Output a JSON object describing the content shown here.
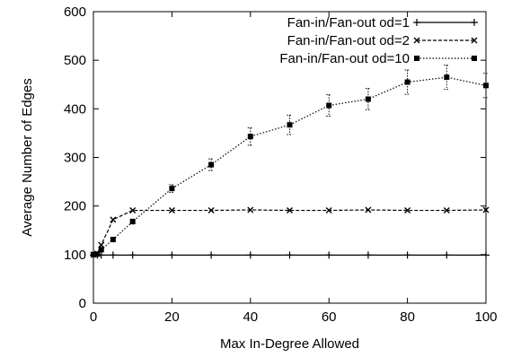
{
  "chart_data": {
    "type": "line",
    "title": "",
    "xlabel": "Max In-Degree Allowed",
    "ylabel": "Average Number of Edges",
    "xlim": [
      0,
      100
    ],
    "ylim": [
      0,
      600
    ],
    "xticks": [
      0,
      20,
      40,
      60,
      80,
      100
    ],
    "yticks": [
      0,
      100,
      200,
      300,
      400,
      500,
      600
    ],
    "legend_position": "top-right",
    "grid": false,
    "series": [
      {
        "name": "Fan-in/Fan-out od=1",
        "style": "solid",
        "marker": "plus",
        "x": [
          0,
          1,
          2,
          5,
          10,
          20,
          30,
          40,
          50,
          60,
          70,
          80,
          90,
          100
        ],
        "y": [
          99,
          99,
          99,
          99,
          99,
          99,
          99,
          99,
          99,
          99,
          99,
          99,
          99,
          99
        ],
        "err": [
          0,
          0,
          0,
          0,
          0,
          0,
          0,
          0,
          0,
          0,
          0,
          0,
          0,
          0
        ]
      },
      {
        "name": "Fan-in/Fan-out od=2",
        "style": "dashed",
        "marker": "cross",
        "x": [
          0,
          1,
          2,
          5,
          10,
          20,
          30,
          40,
          50,
          60,
          70,
          80,
          90,
          100
        ],
        "y": [
          100,
          102,
          120,
          172,
          191,
          191,
          191,
          192,
          191,
          191,
          192,
          191,
          191,
          192
        ],
        "err": [
          0,
          0,
          0,
          0,
          0,
          0,
          0,
          0,
          0,
          0,
          0,
          0,
          0,
          0
        ]
      },
      {
        "name": "Fan-in/Fan-out od=10",
        "style": "dotted",
        "marker": "square",
        "x": [
          0,
          1,
          2,
          5,
          10,
          20,
          30,
          40,
          50,
          60,
          70,
          80,
          90,
          100
        ],
        "y": [
          100,
          101,
          110,
          131,
          168,
          236,
          285,
          343,
          367,
          407,
          420,
          455,
          465,
          448
        ],
        "err": [
          0,
          0,
          0,
          3,
          5,
          8,
          12,
          18,
          20,
          22,
          22,
          25,
          25,
          25
        ]
      }
    ]
  }
}
